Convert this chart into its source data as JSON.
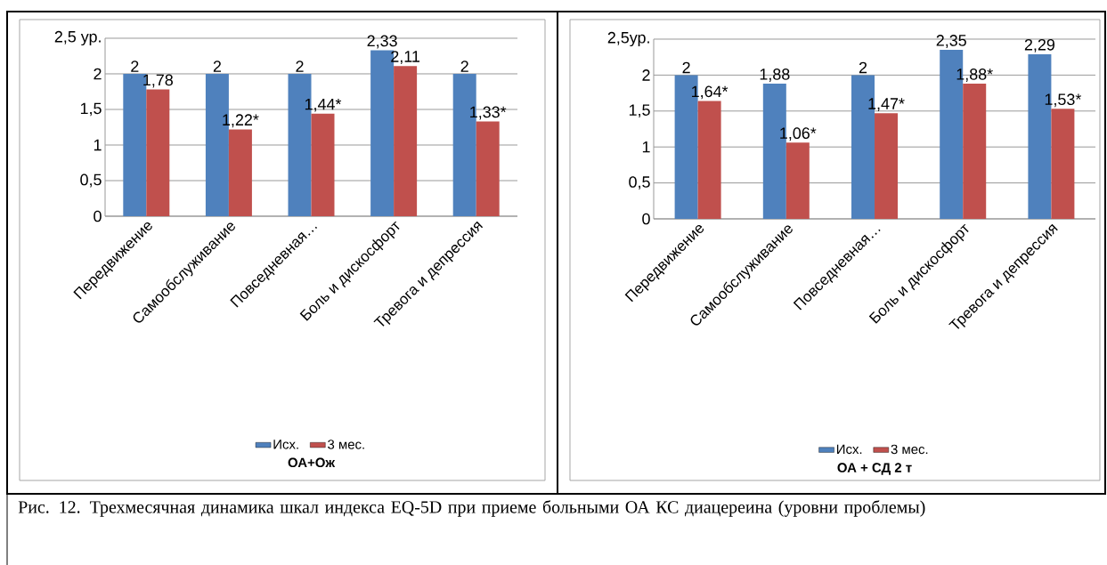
{
  "chart_data": [
    {
      "type": "bar",
      "title": "ОА+Ож",
      "categories": [
        "Передвижение",
        "Самообслуживание",
        "Повседневная…",
        "Боль и дискосфорт",
        "Тревога и депрессия"
      ],
      "series": [
        {
          "name": "Исх.",
          "color": "#4f81bd",
          "values": [
            2,
            2,
            2,
            2.33,
            2
          ],
          "value_labels": [
            "2",
            "2",
            "2",
            "2,33",
            "2"
          ]
        },
        {
          "name": "3 мес.",
          "color": "#c0504d",
          "values": [
            1.78,
            1.22,
            1.44,
            2.11,
            1.33
          ],
          "value_labels": [
            "1,78",
            "1,22*",
            "1,44*",
            "2,11",
            "1,33*"
          ]
        }
      ],
      "ylim": [
        0,
        2.5
      ],
      "yticks": [
        0,
        {
          "value": 0.5,
          "label": "0,5"
        },
        1,
        {
          "value": 1.5,
          "label": "1,5"
        },
        2,
        {
          "value": 2.5,
          "label": "2,5 ур."
        }
      ],
      "grid": "y",
      "legend": "bottom",
      "annotations": [
        "Рис. 12. Трехмесячная динамика шкал индекса EQ-5D при приеме больными ОА КС диацереина (уровни проблемы)"
      ]
    },
    {
      "type": "bar",
      "title": "ОА + СД 2 т",
      "categories": [
        "Передвижение",
        "Самообслуживание",
        "Повседневная…",
        "Боль и дискосфорт",
        "Тревога и депрессия"
      ],
      "series": [
        {
          "name": "Исх.",
          "color": "#4f81bd",
          "values": [
            2,
            1.88,
            2,
            2.35,
            2.29
          ],
          "value_labels": [
            "2",
            "1,88",
            "2",
            "2,35",
            "2,29"
          ]
        },
        {
          "name": "3 мес.",
          "color": "#c0504d",
          "values": [
            1.64,
            1.06,
            1.47,
            1.88,
            1.53
          ],
          "value_labels": [
            "1,64*",
            "1,06*",
            "1,47*",
            "1,88*",
            "1,53*"
          ]
        }
      ],
      "ylim": [
        0,
        2.5
      ],
      "yticks": [
        0,
        {
          "value": 0.5,
          "label": "0,5"
        },
        1,
        {
          "value": 1.5,
          "label": "1,5"
        },
        2,
        {
          "value": 2.5,
          "label": "2,5ур."
        }
      ],
      "grid": "y",
      "legend": "bottom"
    }
  ]
}
